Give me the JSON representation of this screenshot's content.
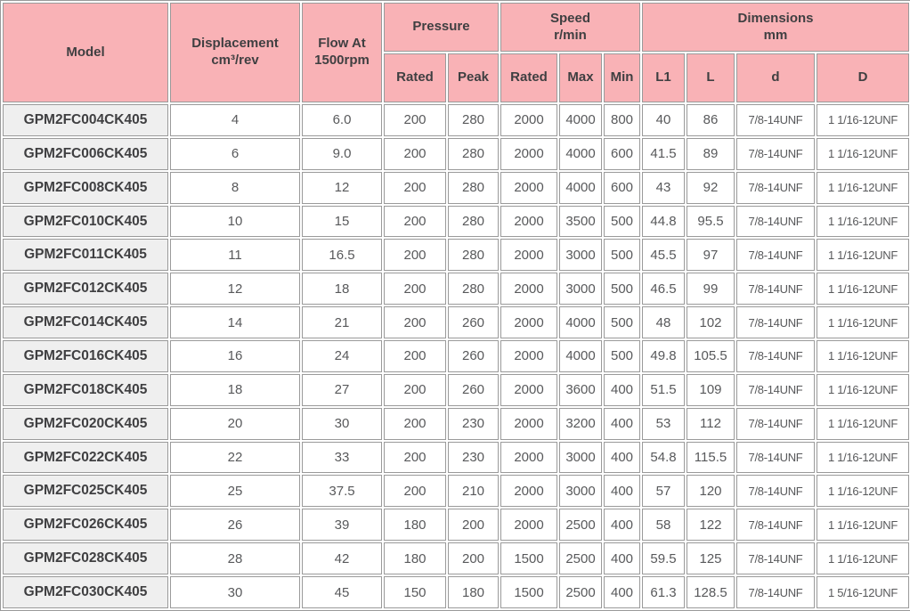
{
  "colors": {
    "header_pink": "#f9b2b6",
    "model_gray": "#efefef",
    "border_gray": "#9a9a9a",
    "header_text": "#3f3f41",
    "data_text": "#58595b"
  },
  "table": {
    "header": {
      "model": "Model",
      "displacement": {
        "line1": "Displacement",
        "line2": "cm³/rev"
      },
      "flow": {
        "line1": "Flow At",
        "line2": "1500rpm"
      },
      "pressure": {
        "label": "Pressure",
        "rated": "Rated",
        "peak": "Peak"
      },
      "speed": {
        "line1": "Speed",
        "line2": "r/min",
        "rated": "Rated",
        "max": "Max",
        "min": "Min"
      },
      "dimensions": {
        "line1": "Dimensions",
        "line2": "mm",
        "l1": "L1",
        "l": "L",
        "d": "d",
        "D": "D"
      }
    },
    "rows": [
      [
        "GPM2FC004CK405",
        "4",
        "6.0",
        "200",
        "280",
        "2000",
        "4000",
        "800",
        "40",
        "86",
        "7/8-14UNF",
        "1 1/16-12UNF"
      ],
      [
        "GPM2FC006CK405",
        "6",
        "9.0",
        "200",
        "280",
        "2000",
        "4000",
        "600",
        "41.5",
        "89",
        "7/8-14UNF",
        "1 1/16-12UNF"
      ],
      [
        "GPM2FC008CK405",
        "8",
        "12",
        "200",
        "280",
        "2000",
        "4000",
        "600",
        "43",
        "92",
        "7/8-14UNF",
        "1 1/16-12UNF"
      ],
      [
        "GPM2FC010CK405",
        "10",
        "15",
        "200",
        "280",
        "2000",
        "3500",
        "500",
        "44.8",
        "95.5",
        "7/8-14UNF",
        "1 1/16-12UNF"
      ],
      [
        "GPM2FC011CK405",
        "11",
        "16.5",
        "200",
        "280",
        "2000",
        "3000",
        "500",
        "45.5",
        "97",
        "7/8-14UNF",
        "1 1/16-12UNF"
      ],
      [
        "GPM2FC012CK405",
        "12",
        "18",
        "200",
        "280",
        "2000",
        "3000",
        "500",
        "46.5",
        "99",
        "7/8-14UNF",
        "1 1/16-12UNF"
      ],
      [
        "GPM2FC014CK405",
        "14",
        "21",
        "200",
        "260",
        "2000",
        "4000",
        "500",
        "48",
        "102",
        "7/8-14UNF",
        "1 1/16-12UNF"
      ],
      [
        "GPM2FC016CK405",
        "16",
        "24",
        "200",
        "260",
        "2000",
        "4000",
        "500",
        "49.8",
        "105.5",
        "7/8-14UNF",
        "1 1/16-12UNF"
      ],
      [
        "GPM2FC018CK405",
        "18",
        "27",
        "200",
        "260",
        "2000",
        "3600",
        "400",
        "51.5",
        "109",
        "7/8-14UNF",
        "1 1/16-12UNF"
      ],
      [
        "GPM2FC020CK405",
        "20",
        "30",
        "200",
        "230",
        "2000",
        "3200",
        "400",
        "53",
        "112",
        "7/8-14UNF",
        "1 1/16-12UNF"
      ],
      [
        "GPM2FC022CK405",
        "22",
        "33",
        "200",
        "230",
        "2000",
        "3000",
        "400",
        "54.8",
        "115.5",
        "7/8-14UNF",
        "1 1/16-12UNF"
      ],
      [
        "GPM2FC025CK405",
        "25",
        "37.5",
        "200",
        "210",
        "2000",
        "3000",
        "400",
        "57",
        "120",
        "7/8-14UNF",
        "1 1/16-12UNF"
      ],
      [
        "GPM2FC026CK405",
        "26",
        "39",
        "180",
        "200",
        "2000",
        "2500",
        "400",
        "58",
        "122",
        "7/8-14UNF",
        "1 1/16-12UNF"
      ],
      [
        "GPM2FC028CK405",
        "28",
        "42",
        "180",
        "200",
        "1500",
        "2500",
        "400",
        "59.5",
        "125",
        "7/8-14UNF",
        "1 1/16-12UNF"
      ],
      [
        "GPM2FC030CK405",
        "30",
        "45",
        "150",
        "180",
        "1500",
        "2500",
        "400",
        "61.3",
        "128.5",
        "7/8-14UNF",
        "1 5/16-12UNF"
      ]
    ]
  }
}
